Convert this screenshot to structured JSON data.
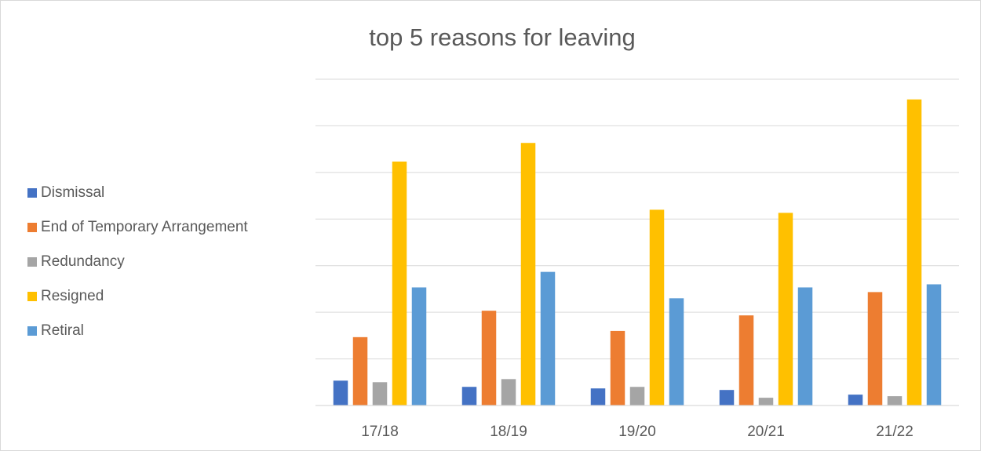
{
  "chart_data": {
    "type": "bar",
    "title": "top 5 reasons for leaving",
    "categories": [
      "17/18",
      "18/19",
      "19/20",
      "20/21",
      "21/22"
    ],
    "series": [
      {
        "name": "Dismissal",
        "color": "#4472c4",
        "values": [
          16,
          12,
          11,
          10,
          7
        ]
      },
      {
        "name": "End of Temporary Arrangement",
        "color": "#ed7d31",
        "values": [
          44,
          61,
          48,
          58,
          73
        ]
      },
      {
        "name": "Redundancy",
        "color": "#a5a5a5",
        "values": [
          15,
          17,
          12,
          5,
          6
        ]
      },
      {
        "name": "Resigned",
        "color": "#ffc000",
        "values": [
          157,
          169,
          126,
          124,
          197
        ]
      },
      {
        "name": "Retiral",
        "color": "#5b9bd5",
        "values": [
          76,
          86,
          69,
          76,
          78
        ]
      }
    ],
    "ylim": [
      0,
      210
    ],
    "gridlines": [
      30,
      60,
      90,
      120,
      150,
      180,
      210
    ],
    "y_tick_labels_visible": false,
    "grid": true,
    "legend_position": "left"
  }
}
